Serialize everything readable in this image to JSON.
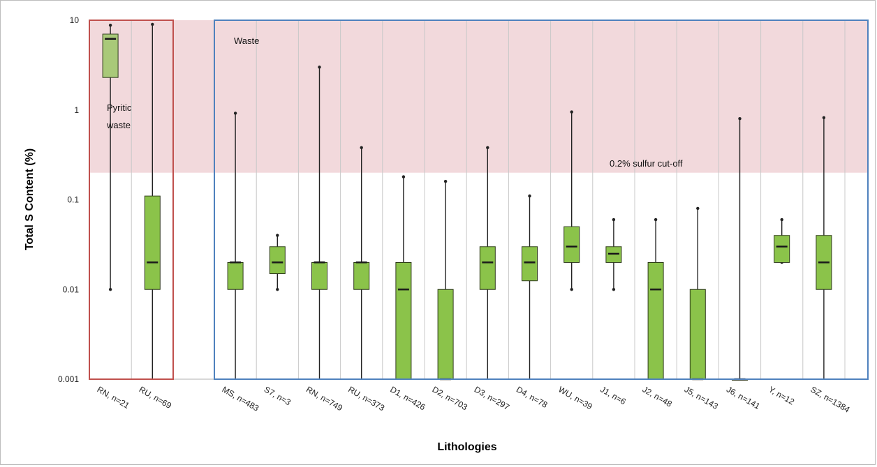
{
  "chart_data": {
    "type": "boxplot",
    "ylabel": "Total S Content (%)",
    "xlabel": "Lithologies",
    "yscale": "log",
    "ylim": [
      0.001,
      10
    ],
    "yticks": [
      "10",
      "1",
      "0.1",
      "0.01",
      "0.001"
    ],
    "yticks_values": [
      10,
      1,
      0.1,
      0.01,
      0.001
    ],
    "grid": "vertical",
    "colors": {
      "box_fill": "#8bc34a",
      "box_fill_light": "#a9c979",
      "waste_band": "#f2d9dc",
      "pyritic_group_border": "#c0504d",
      "waste_group_border": "#4f81bd"
    },
    "annotations": {
      "waste": "Waste",
      "pyritic_line1": "Pyritic",
      "pyritic_line2": "waste",
      "cutoff": "0.2% sulfur cut-off",
      "cutoff_value": 0.2
    },
    "groups": [
      {
        "name": "Pyritic waste",
        "categories": [
          {
            "label": "RN, n=21",
            "min": 0.01,
            "q1": 2.3,
            "median": 6.2,
            "q3": 7,
            "max": 8.8
          },
          {
            "label": "RU, n=69",
            "min": 0.001,
            "q1": 0.01,
            "median": 0.02,
            "q3": 0.11,
            "max": 9
          }
        ]
      },
      {
        "name": "Waste",
        "categories": [
          {
            "label": "MS, n=483",
            "min": 0.001,
            "q1": 0.01,
            "median": 0.02,
            "q3": 0.02,
            "max": 0.92
          },
          {
            "label": "S7, n=3",
            "min": 0.01,
            "q1": 0.015,
            "median": 0.02,
            "q3": 0.03,
            "max": 0.04
          },
          {
            "label": "RN, n=749",
            "min": 0.001,
            "q1": 0.01,
            "median": 0.02,
            "q3": 0.02,
            "max": 3
          },
          {
            "label": "RU, n=373",
            "min": 0.001,
            "q1": 0.01,
            "median": 0.02,
            "q3": 0.02,
            "max": 0.38
          },
          {
            "label": "D1, n=426",
            "min": 0.001,
            "q1": 0.001,
            "median": 0.01,
            "q3": 0.02,
            "max": 0.18
          },
          {
            "label": "D2, n=703",
            "min": 0.001,
            "q1": 0.001,
            "median": 0.001,
            "q3": 0.01,
            "max": 0.16
          },
          {
            "label": "D3, n=297",
            "min": 0.001,
            "q1": 0.01,
            "median": 0.02,
            "q3": 0.03,
            "max": 0.38
          },
          {
            "label": "D4, n=78",
            "min": 0.001,
            "q1": 0.0125,
            "median": 0.02,
            "q3": 0.03,
            "max": 0.11
          },
          {
            "label": "WU, n=39",
            "min": 0.01,
            "q1": 0.02,
            "median": 0.03,
            "q3": 0.05,
            "max": 0.95
          },
          {
            "label": "J1, n=6",
            "min": 0.01,
            "q1": 0.02,
            "median": 0.025,
            "q3": 0.03,
            "max": 0.06
          },
          {
            "label": "J2, n=48",
            "min": 0.001,
            "q1": 0.001,
            "median": 0.01,
            "q3": 0.02,
            "max": 0.06
          },
          {
            "label": "J5, n=143",
            "min": 0.001,
            "q1": 0.001,
            "median": 0.001,
            "q3": 0.01,
            "max": 0.08
          },
          {
            "label": "J6, n=141",
            "min": 0.001,
            "q1": 0.001,
            "median": 0.001,
            "q3": 0.001,
            "max": 0.8
          },
          {
            "label": "Y, n=12",
            "min": 0.02,
            "q1": 0.02,
            "median": 0.03,
            "q3": 0.04,
            "max": 0.06
          },
          {
            "label": "SZ, n=1384",
            "min": 0.001,
            "q1": 0.01,
            "median": 0.02,
            "q3": 0.04,
            "max": 0.82
          }
        ]
      }
    ]
  }
}
